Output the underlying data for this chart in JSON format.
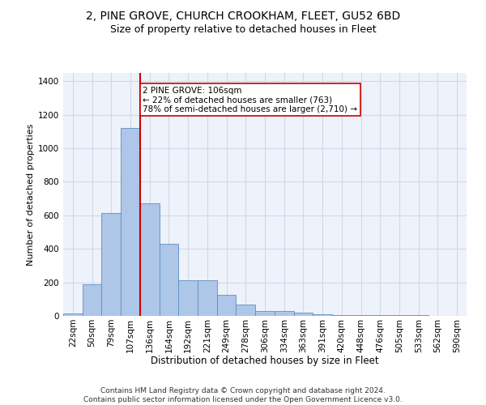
{
  "title1": "2, PINE GROVE, CHURCH CROOKHAM, FLEET, GU52 6BD",
  "title2": "Size of property relative to detached houses in Fleet",
  "xlabel": "Distribution of detached houses by size in Fleet",
  "ylabel": "Number of detached properties",
  "categories": [
    "22sqm",
    "50sqm",
    "79sqm",
    "107sqm",
    "136sqm",
    "164sqm",
    "192sqm",
    "221sqm",
    "249sqm",
    "278sqm",
    "306sqm",
    "334sqm",
    "363sqm",
    "391sqm",
    "420sqm",
    "448sqm",
    "476sqm",
    "505sqm",
    "533sqm",
    "562sqm",
    "590sqm"
  ],
  "values": [
    15,
    190,
    615,
    1120,
    670,
    430,
    215,
    215,
    125,
    70,
    30,
    30,
    20,
    12,
    5,
    5,
    3,
    3,
    3,
    2,
    2
  ],
  "bar_color": "#aec6e8",
  "bar_edge_color": "#5a8fc2",
  "vline_x": 3.5,
  "vline_color": "#cc0000",
  "annotation_text": "2 PINE GROVE: 106sqm\n← 22% of detached houses are smaller (763)\n78% of semi-detached houses are larger (2,710) →",
  "annotation_box_color": "#ffffff",
  "annotation_box_edge": "#cc0000",
  "ylim": [
    0,
    1450
  ],
  "yticks": [
    0,
    200,
    400,
    600,
    800,
    1000,
    1200,
    1400
  ],
  "grid_color": "#d0d8e8",
  "bg_color": "#eef2fa",
  "footnote": "Contains HM Land Registry data © Crown copyright and database right 2024.\nContains public sector information licensed under the Open Government Licence v3.0.",
  "title1_fontsize": 10,
  "title2_fontsize": 9,
  "xlabel_fontsize": 8.5,
  "ylabel_fontsize": 8,
  "tick_fontsize": 7.5,
  "footnote_fontsize": 6.5,
  "annot_fontsize": 7.5
}
